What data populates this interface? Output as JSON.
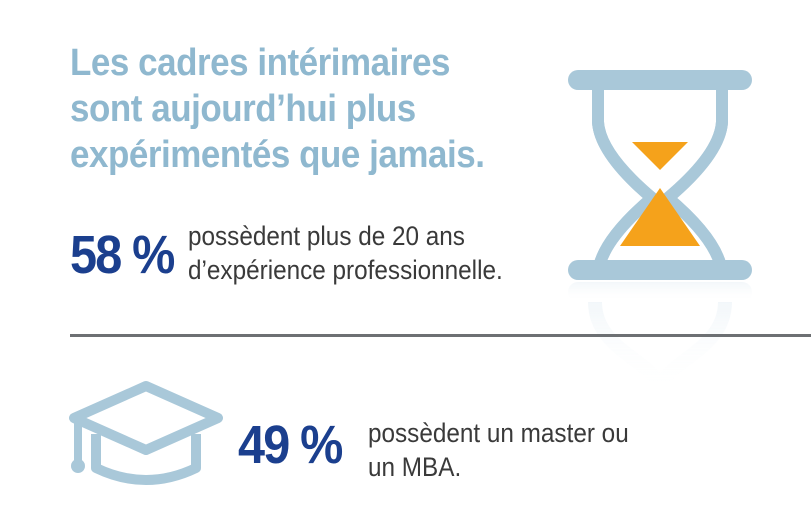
{
  "headline": {
    "line1": "Les cadres intérimaires",
    "line2": "sont aujourd’hui plus",
    "line3": "expérimentés que jamais."
  },
  "stat1": {
    "value": "58 %",
    "line1": "possèdent plus de 20 ans",
    "line2": "d’expérience professionnelle."
  },
  "stat2": {
    "value": "49 %",
    "line1": "possèdent un master ou",
    "line2": "un MBA."
  },
  "icons": {
    "hourglass": "hourglass-icon",
    "graduation_cap": "graduation-cap-icon"
  },
  "colors": {
    "headline": "#8fb8cf",
    "stat": "#1b3f8e",
    "icon": "#a9c8d9",
    "sand": "#f5a21b",
    "divider": "#6d7073"
  }
}
